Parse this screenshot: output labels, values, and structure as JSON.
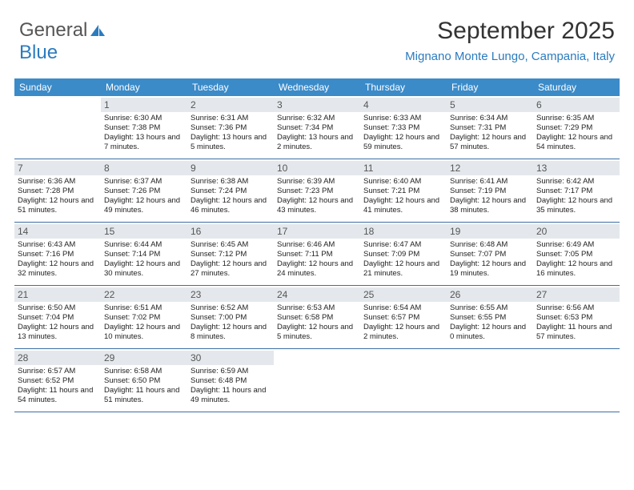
{
  "brand": {
    "part1": "General",
    "part2": "Blue"
  },
  "header": {
    "month": "September 2025",
    "location": "Mignano Monte Lungo, Campania, Italy"
  },
  "weekday_bg": "#3b8bc9",
  "daynum_bg": "#e4e8ec",
  "week_border": "#3b6fa5",
  "weekdays": [
    "Sunday",
    "Monday",
    "Tuesday",
    "Wednesday",
    "Thursday",
    "Friday",
    "Saturday"
  ],
  "weeks": [
    [
      null,
      {
        "n": "1",
        "sunrise": "6:30 AM",
        "sunset": "7:38 PM",
        "daylight": "13 hours and 7 minutes."
      },
      {
        "n": "2",
        "sunrise": "6:31 AM",
        "sunset": "7:36 PM",
        "daylight": "13 hours and 5 minutes."
      },
      {
        "n": "3",
        "sunrise": "6:32 AM",
        "sunset": "7:34 PM",
        "daylight": "13 hours and 2 minutes."
      },
      {
        "n": "4",
        "sunrise": "6:33 AM",
        "sunset": "7:33 PM",
        "daylight": "12 hours and 59 minutes."
      },
      {
        "n": "5",
        "sunrise": "6:34 AM",
        "sunset": "7:31 PM",
        "daylight": "12 hours and 57 minutes."
      },
      {
        "n": "6",
        "sunrise": "6:35 AM",
        "sunset": "7:29 PM",
        "daylight": "12 hours and 54 minutes."
      }
    ],
    [
      {
        "n": "7",
        "sunrise": "6:36 AM",
        "sunset": "7:28 PM",
        "daylight": "12 hours and 51 minutes."
      },
      {
        "n": "8",
        "sunrise": "6:37 AM",
        "sunset": "7:26 PM",
        "daylight": "12 hours and 49 minutes."
      },
      {
        "n": "9",
        "sunrise": "6:38 AM",
        "sunset": "7:24 PM",
        "daylight": "12 hours and 46 minutes."
      },
      {
        "n": "10",
        "sunrise": "6:39 AM",
        "sunset": "7:23 PM",
        "daylight": "12 hours and 43 minutes."
      },
      {
        "n": "11",
        "sunrise": "6:40 AM",
        "sunset": "7:21 PM",
        "daylight": "12 hours and 41 minutes."
      },
      {
        "n": "12",
        "sunrise": "6:41 AM",
        "sunset": "7:19 PM",
        "daylight": "12 hours and 38 minutes."
      },
      {
        "n": "13",
        "sunrise": "6:42 AM",
        "sunset": "7:17 PM",
        "daylight": "12 hours and 35 minutes."
      }
    ],
    [
      {
        "n": "14",
        "sunrise": "6:43 AM",
        "sunset": "7:16 PM",
        "daylight": "12 hours and 32 minutes."
      },
      {
        "n": "15",
        "sunrise": "6:44 AM",
        "sunset": "7:14 PM",
        "daylight": "12 hours and 30 minutes."
      },
      {
        "n": "16",
        "sunrise": "6:45 AM",
        "sunset": "7:12 PM",
        "daylight": "12 hours and 27 minutes."
      },
      {
        "n": "17",
        "sunrise": "6:46 AM",
        "sunset": "7:11 PM",
        "daylight": "12 hours and 24 minutes."
      },
      {
        "n": "18",
        "sunrise": "6:47 AM",
        "sunset": "7:09 PM",
        "daylight": "12 hours and 21 minutes."
      },
      {
        "n": "19",
        "sunrise": "6:48 AM",
        "sunset": "7:07 PM",
        "daylight": "12 hours and 19 minutes."
      },
      {
        "n": "20",
        "sunrise": "6:49 AM",
        "sunset": "7:05 PM",
        "daylight": "12 hours and 16 minutes."
      }
    ],
    [
      {
        "n": "21",
        "sunrise": "6:50 AM",
        "sunset": "7:04 PM",
        "daylight": "12 hours and 13 minutes."
      },
      {
        "n": "22",
        "sunrise": "6:51 AM",
        "sunset": "7:02 PM",
        "daylight": "12 hours and 10 minutes."
      },
      {
        "n": "23",
        "sunrise": "6:52 AM",
        "sunset": "7:00 PM",
        "daylight": "12 hours and 8 minutes."
      },
      {
        "n": "24",
        "sunrise": "6:53 AM",
        "sunset": "6:58 PM",
        "daylight": "12 hours and 5 minutes."
      },
      {
        "n": "25",
        "sunrise": "6:54 AM",
        "sunset": "6:57 PM",
        "daylight": "12 hours and 2 minutes."
      },
      {
        "n": "26",
        "sunrise": "6:55 AM",
        "sunset": "6:55 PM",
        "daylight": "12 hours and 0 minutes."
      },
      {
        "n": "27",
        "sunrise": "6:56 AM",
        "sunset": "6:53 PM",
        "daylight": "11 hours and 57 minutes."
      }
    ],
    [
      {
        "n": "28",
        "sunrise": "6:57 AM",
        "sunset": "6:52 PM",
        "daylight": "11 hours and 54 minutes."
      },
      {
        "n": "29",
        "sunrise": "6:58 AM",
        "sunset": "6:50 PM",
        "daylight": "11 hours and 51 minutes."
      },
      {
        "n": "30",
        "sunrise": "6:59 AM",
        "sunset": "6:48 PM",
        "daylight": "11 hours and 49 minutes."
      },
      null,
      null,
      null,
      null
    ]
  ]
}
